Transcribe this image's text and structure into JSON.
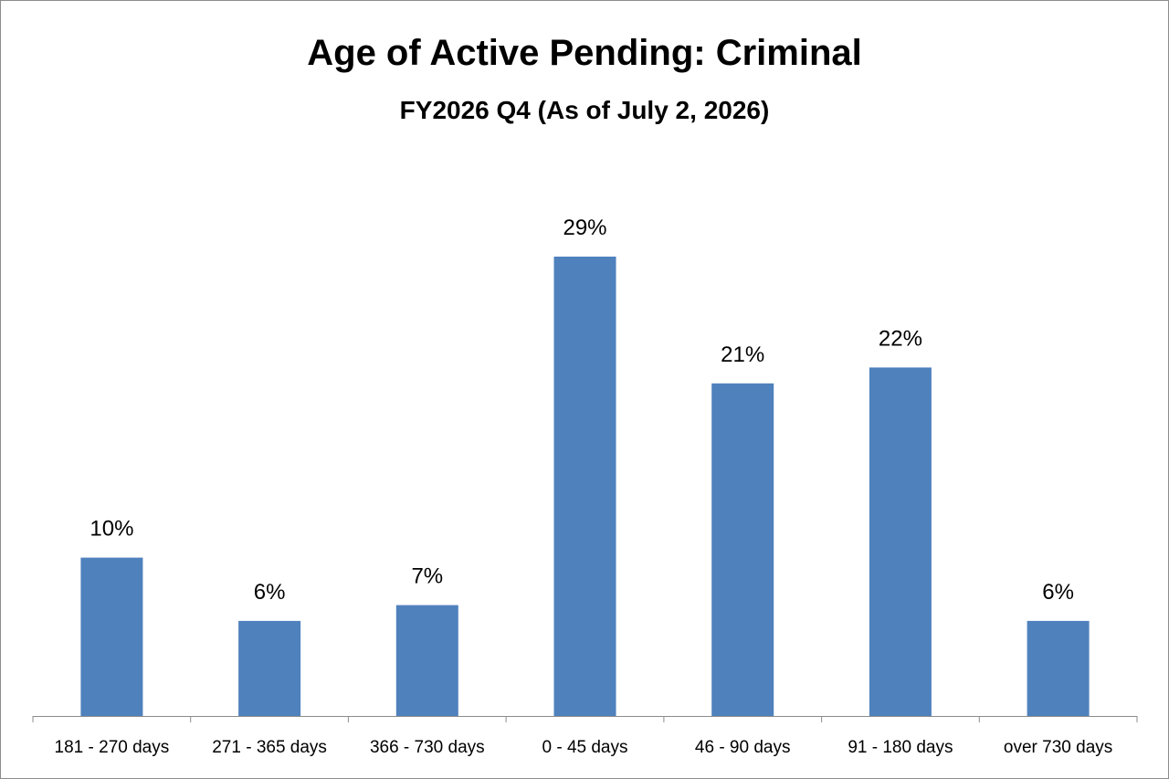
{
  "chart_data": {
    "type": "bar",
    "title": "Age of Active Pending: Criminal",
    "subtitle": "FY2026 Q4 (As of July 2, 2026)",
    "xlabel": "",
    "ylabel": "",
    "categories": [
      "181 - 270 days",
      "271 - 365 days",
      "366 - 730 days",
      "0 - 45 days",
      "46 - 90 days",
      "91 - 180 days",
      "over 730 days"
    ],
    "values": [
      10,
      6,
      7,
      29,
      21,
      22,
      6
    ],
    "data_labels": [
      "10%",
      "6%",
      "7%",
      "29%",
      "21%",
      "22%",
      "6%"
    ],
    "value_unit": "%",
    "ylim": [
      0,
      29
    ],
    "grid": false,
    "legend": "none",
    "bar_color": "#4f81bd",
    "axis_color": "#8c8c8c"
  }
}
